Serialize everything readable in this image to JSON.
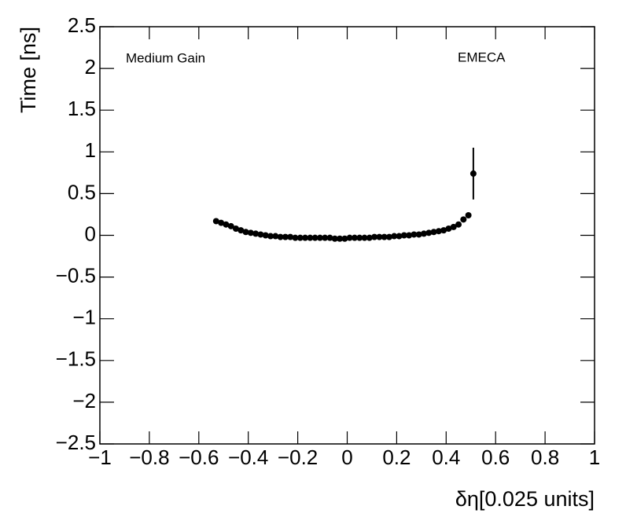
{
  "chart_data": {
    "type": "scatter",
    "xlabel": "δη[0.025 units]",
    "ylabel": "Time [ns]",
    "annotations": [
      "Medium Gain",
      "EMECA"
    ],
    "color": "#000000",
    "x": [
      -0.53,
      -0.51,
      -0.49,
      -0.47,
      -0.45,
      -0.43,
      -0.41,
      -0.39,
      -0.37,
      -0.35,
      -0.33,
      -0.31,
      -0.29,
      -0.27,
      -0.25,
      -0.23,
      -0.21,
      -0.19,
      -0.17,
      -0.15,
      -0.13,
      -0.11,
      -0.09,
      -0.07,
      -0.05,
      -0.03,
      -0.01,
      0.01,
      0.03,
      0.05,
      0.07,
      0.09,
      0.11,
      0.13,
      0.15,
      0.17,
      0.19,
      0.21,
      0.23,
      0.25,
      0.27,
      0.29,
      0.31,
      0.33,
      0.35,
      0.37,
      0.39,
      0.41,
      0.43,
      0.45,
      0.47,
      0.49,
      0.51
    ],
    "values": [
      0.17,
      0.15,
      0.13,
      0.11,
      0.08,
      0.06,
      0.04,
      0.03,
      0.02,
      0.01,
      0.0,
      -0.01,
      -0.01,
      -0.02,
      -0.02,
      -0.02,
      -0.03,
      -0.03,
      -0.03,
      -0.03,
      -0.03,
      -0.03,
      -0.03,
      -0.03,
      -0.04,
      -0.04,
      -0.04,
      -0.03,
      -0.03,
      -0.03,
      -0.03,
      -0.03,
      -0.02,
      -0.02,
      -0.02,
      -0.02,
      -0.01,
      -0.01,
      0.0,
      0.0,
      0.01,
      0.01,
      0.02,
      0.03,
      0.04,
      0.05,
      0.06,
      0.08,
      0.1,
      0.13,
      0.19,
      0.24,
      0.74
    ],
    "errors": [
      0.01,
      0.01,
      0.01,
      0.01,
      0.01,
      0.01,
      0.01,
      0.01,
      0.01,
      0.01,
      0.01,
      0.01,
      0.01,
      0.01,
      0.01,
      0.01,
      0.01,
      0.01,
      0.01,
      0.01,
      0.01,
      0.01,
      0.01,
      0.01,
      0.01,
      0.01,
      0.01,
      0.01,
      0.01,
      0.01,
      0.01,
      0.01,
      0.01,
      0.01,
      0.01,
      0.01,
      0.01,
      0.01,
      0.01,
      0.01,
      0.01,
      0.01,
      0.01,
      0.01,
      0.01,
      0.01,
      0.01,
      0.01,
      0.01,
      0.01,
      0.01,
      0.02,
      0.31
    ],
    "xlim": [
      -1,
      1
    ],
    "xticks": [
      {
        "value": -1,
        "label": "−1"
      },
      {
        "value": -0.8,
        "label": "−0.8"
      },
      {
        "value": -0.6,
        "label": "−0.6"
      },
      {
        "value": -0.4,
        "label": "−0.4"
      },
      {
        "value": -0.2,
        "label": "−0.2"
      },
      0,
      0.2,
      0.4,
      0.6,
      0.8,
      1
    ],
    "ylim": [
      -2.5,
      2.5
    ],
    "yticks": [
      {
        "value": -2.5,
        "label": "−2.5"
      },
      {
        "value": -2,
        "label": "−2"
      },
      {
        "value": -1.5,
        "label": "−1.5"
      },
      {
        "value": -1,
        "label": "−1"
      },
      {
        "value": -0.5,
        "label": "−0.5"
      },
      0,
      0.5,
      1,
      1.5,
      2,
      2.5
    ],
    "grid": false
  }
}
